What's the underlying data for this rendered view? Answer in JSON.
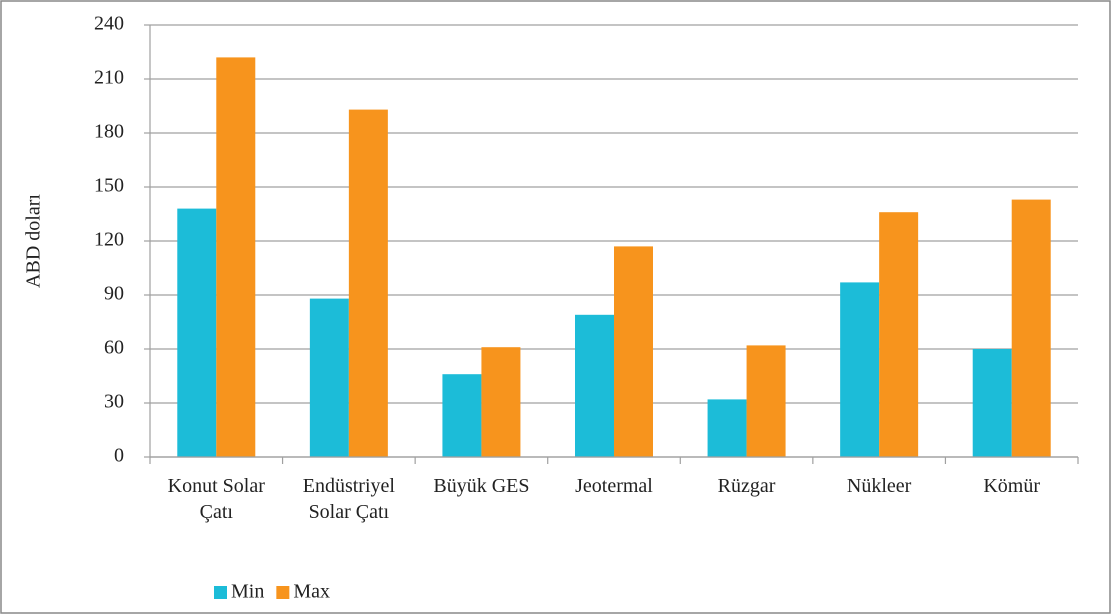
{
  "chart_data": {
    "type": "bar",
    "ylabel": "ABD doları",
    "categories": [
      "Konut Solar Çatı",
      "Endüstriyel Solar Çatı",
      "Büyük GES",
      "Jeotermal",
      "Rüzgar",
      "Nükleer",
      "Kömür"
    ],
    "series": [
      {
        "name": "Min",
        "color": "#1cbcd8",
        "values": [
          138,
          88,
          46,
          79,
          32,
          97,
          60
        ]
      },
      {
        "name": "Max",
        "color": "#f7941d",
        "values": [
          222,
          193,
          61,
          117,
          62,
          136,
          143
        ]
      }
    ],
    "ylim": [
      0,
      240
    ],
    "yticks": [
      0,
      30,
      60,
      90,
      120,
      150,
      180,
      210,
      240
    ],
    "grid": true,
    "legend": "bottom-left"
  }
}
